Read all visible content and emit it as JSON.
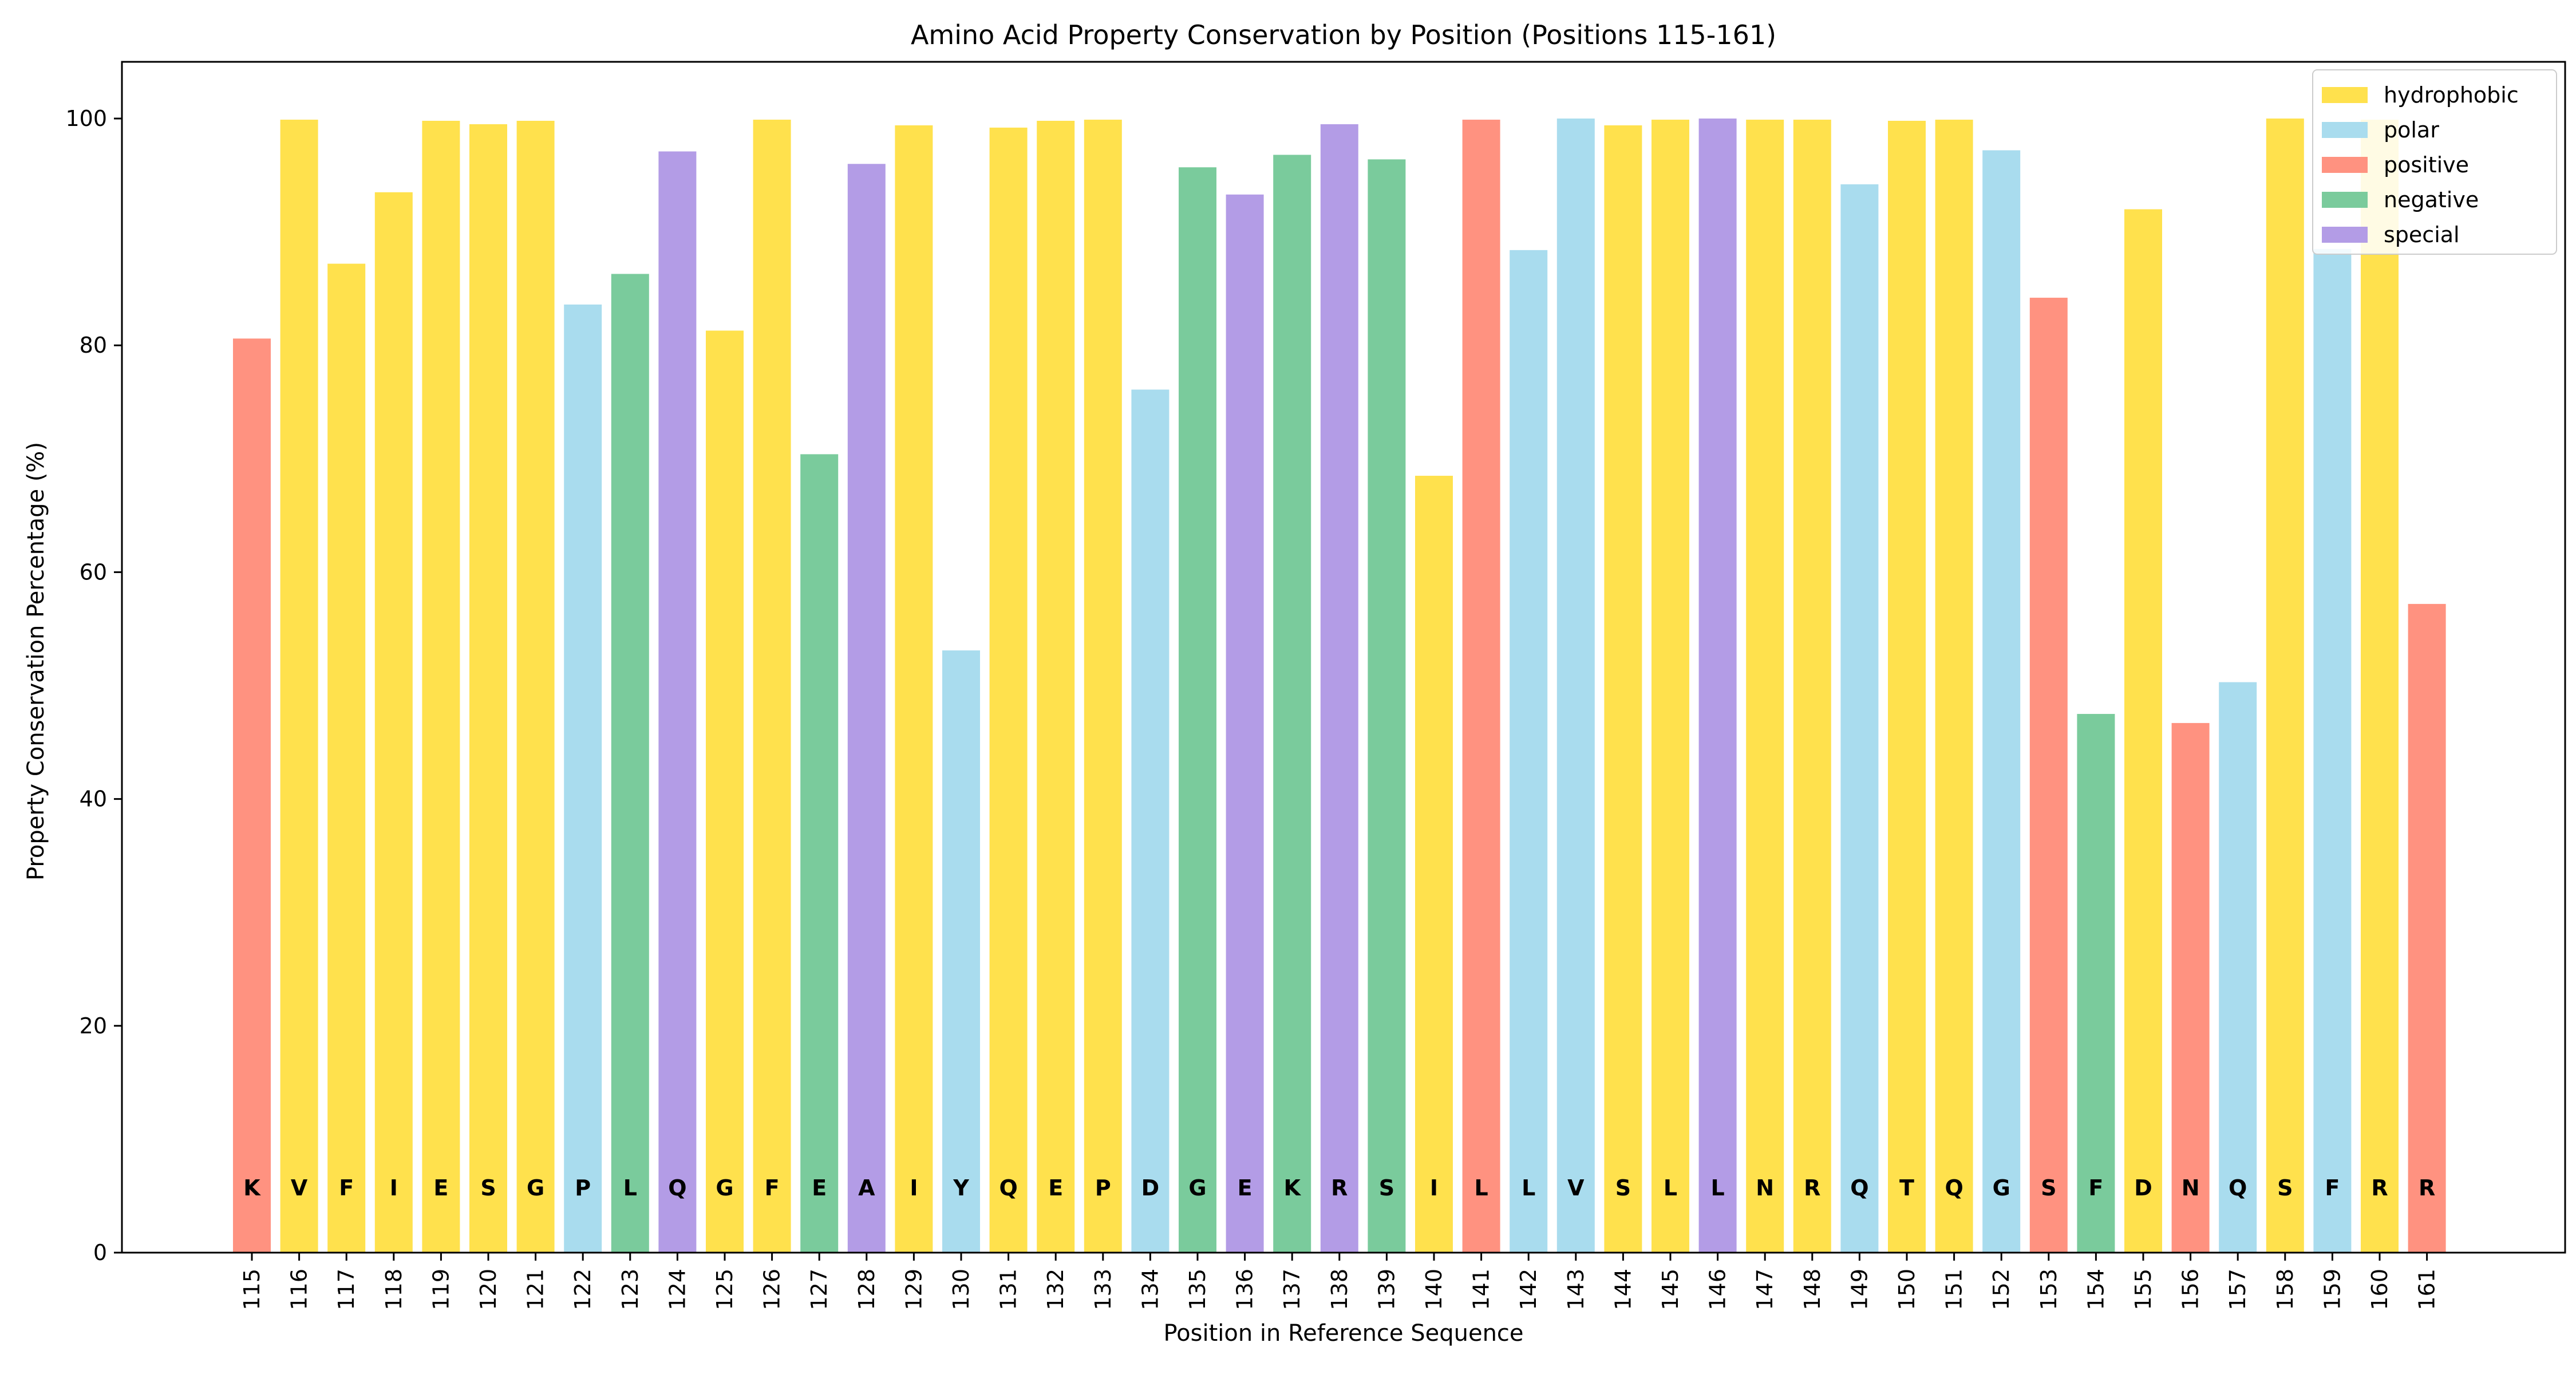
{
  "chart_data": {
    "type": "bar",
    "title": "Amino Acid Property Conservation by Position (Positions 115-161)",
    "xlabel": "Position in Reference Sequence",
    "ylabel": "Property Conservation Percentage (%)",
    "ylim": [
      0,
      105
    ],
    "yticks": [
      0,
      20,
      40,
      60,
      80,
      100
    ],
    "legend_position": "top-right",
    "colors": {
      "hydrophobic": "#ffe14d",
      "polar": "#a9dcee",
      "positive": "#ff9280",
      "negative": "#7acb9c",
      "special": "#b39ce6"
    },
    "legend": [
      {
        "key": "hydrophobic",
        "label": "hydrophobic"
      },
      {
        "key": "polar",
        "label": "polar"
      },
      {
        "key": "positive",
        "label": "positive"
      },
      {
        "key": "negative",
        "label": "negative"
      },
      {
        "key": "special",
        "label": "special"
      }
    ],
    "positions": [
      {
        "position": "115",
        "residue": "K",
        "category": "positive",
        "value": 80.6
      },
      {
        "position": "116",
        "residue": "V",
        "category": "hydrophobic",
        "value": 99.9
      },
      {
        "position": "117",
        "residue": "F",
        "category": "hydrophobic",
        "value": 87.2
      },
      {
        "position": "118",
        "residue": "I",
        "category": "hydrophobic",
        "value": 93.5
      },
      {
        "position": "119",
        "residue": "E",
        "category": "hydrophobic",
        "value": 99.8
      },
      {
        "position": "120",
        "residue": "S",
        "category": "hydrophobic",
        "value": 99.5
      },
      {
        "position": "121",
        "residue": "G",
        "category": "hydrophobic",
        "value": 99.8
      },
      {
        "position": "122",
        "residue": "P",
        "category": "polar",
        "value": 83.6
      },
      {
        "position": "123",
        "residue": "L",
        "category": "negative",
        "value": 86.3
      },
      {
        "position": "124",
        "residue": "Q",
        "category": "special",
        "value": 97.1
      },
      {
        "position": "125",
        "residue": "G",
        "category": "hydrophobic",
        "value": 81.3
      },
      {
        "position": "126",
        "residue": "F",
        "category": "hydrophobic",
        "value": 99.9
      },
      {
        "position": "127",
        "residue": "E",
        "category": "negative",
        "value": 70.4
      },
      {
        "position": "128",
        "residue": "A",
        "category": "special",
        "value": 96.0
      },
      {
        "position": "129",
        "residue": "I",
        "category": "hydrophobic",
        "value": 99.4
      },
      {
        "position": "130",
        "residue": "Y",
        "category": "polar",
        "value": 53.1
      },
      {
        "position": "131",
        "residue": "Q",
        "category": "hydrophobic",
        "value": 99.2
      },
      {
        "position": "132",
        "residue": "E",
        "category": "hydrophobic",
        "value": 99.8
      },
      {
        "position": "133",
        "residue": "P",
        "category": "hydrophobic",
        "value": 99.9
      },
      {
        "position": "134",
        "residue": "D",
        "category": "polar",
        "value": 76.1
      },
      {
        "position": "135",
        "residue": "G",
        "category": "negative",
        "value": 95.7
      },
      {
        "position": "136",
        "residue": "E",
        "category": "special",
        "value": 93.3
      },
      {
        "position": "137",
        "residue": "K",
        "category": "negative",
        "value": 96.8
      },
      {
        "position": "138",
        "residue": "R",
        "category": "special",
        "value": 99.5
      },
      {
        "position": "139",
        "residue": "S",
        "category": "negative",
        "value": 96.4
      },
      {
        "position": "140",
        "residue": "I",
        "category": "hydrophobic",
        "value": 68.5
      },
      {
        "position": "141",
        "residue": "L",
        "category": "positive",
        "value": 99.9
      },
      {
        "position": "142",
        "residue": "L",
        "category": "polar",
        "value": 88.4
      },
      {
        "position": "143",
        "residue": "V",
        "category": "polar",
        "value": 100.0
      },
      {
        "position": "144",
        "residue": "S",
        "category": "hydrophobic",
        "value": 99.4
      },
      {
        "position": "145",
        "residue": "L",
        "category": "hydrophobic",
        "value": 99.9
      },
      {
        "position": "146",
        "residue": "L",
        "category": "special",
        "value": 100.0
      },
      {
        "position": "147",
        "residue": "N",
        "category": "hydrophobic",
        "value": 99.9
      },
      {
        "position": "148",
        "residue": "R",
        "category": "hydrophobic",
        "value": 99.9
      },
      {
        "position": "149",
        "residue": "Q",
        "category": "polar",
        "value": 94.2
      },
      {
        "position": "150",
        "residue": "T",
        "category": "hydrophobic",
        "value": 99.8
      },
      {
        "position": "151",
        "residue": "Q",
        "category": "hydrophobic",
        "value": 99.9
      },
      {
        "position": "152",
        "residue": "G",
        "category": "polar",
        "value": 97.2
      },
      {
        "position": "153",
        "residue": "S",
        "category": "positive",
        "value": 84.2
      },
      {
        "position": "154",
        "residue": "F",
        "category": "negative",
        "value": 47.5
      },
      {
        "position": "155",
        "residue": "D",
        "category": "hydrophobic",
        "value": 92.0
      },
      {
        "position": "156",
        "residue": "N",
        "category": "positive",
        "value": 46.7
      },
      {
        "position": "157",
        "residue": "Q",
        "category": "polar",
        "value": 50.3
      },
      {
        "position": "158",
        "residue": "S",
        "category": "hydrophobic",
        "value": 100.0
      },
      {
        "position": "159",
        "residue": "F",
        "category": "polar",
        "value": 88.5
      },
      {
        "position": "160",
        "residue": "R",
        "category": "hydrophobic",
        "value": 99.9
      },
      {
        "position": "161",
        "residue": "R",
        "category": "positive",
        "value": 57.2
      }
    ]
  }
}
